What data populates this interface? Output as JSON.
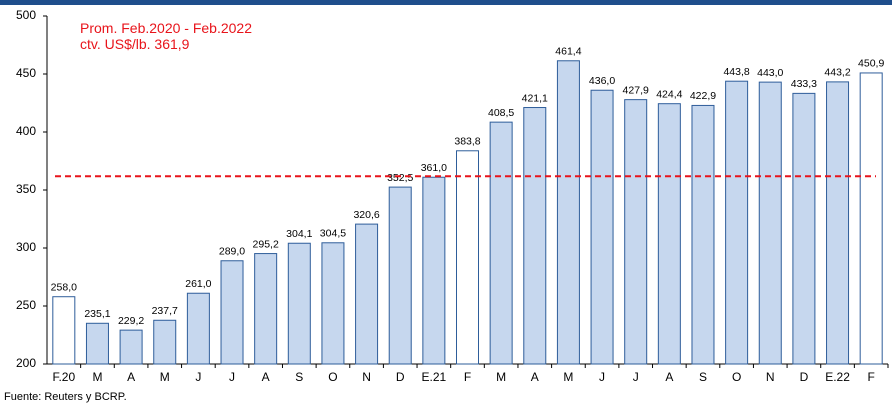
{
  "chart_data": {
    "type": "bar",
    "annotations": [
      "Prom. Feb.2020 - Feb.2022",
      "ctv. US$/lb. 361,9"
    ],
    "reference_line": {
      "value": 361.9,
      "color": "#e8141b"
    },
    "source": "Fuente: Reuters y BCRP.",
    "categories": [
      "F.20",
      "M",
      "A",
      "M",
      "J",
      "J",
      "A",
      "S",
      "O",
      "N",
      "D",
      "E.21",
      "F",
      "M",
      "A",
      "M",
      "J",
      "J",
      "A",
      "S",
      "O",
      "N",
      "D",
      "E.22",
      "F"
    ],
    "values": [
      258.0,
      235.1,
      229.2,
      237.7,
      261.0,
      289.0,
      295.2,
      304.1,
      304.5,
      320.6,
      352.5,
      361.0,
      383.8,
      408.5,
      421.1,
      461.4,
      436.0,
      427.9,
      424.4,
      422.9,
      443.8,
      443.0,
      433.3,
      443.2,
      450.9
    ],
    "value_labels": [
      "258,0",
      "235,1",
      "229,2",
      "237,7",
      "261,0",
      "289,0",
      "295,2",
      "304,1",
      "304,5",
      "320,6",
      "352,5",
      "361,0",
      "383,8",
      "408,5",
      "421,1",
      "461,4",
      "436,0",
      "427,9",
      "424,4",
      "422,9",
      "443,8",
      "443,0",
      "433,3",
      "443,2",
      "450,9"
    ],
    "colors": [
      "#ffffff",
      "#c6d7ee",
      "#c6d7ee",
      "#c6d7ee",
      "#c6d7ee",
      "#c6d7ee",
      "#c6d7ee",
      "#c6d7ee",
      "#c6d7ee",
      "#c6d7ee",
      "#c6d7ee",
      "#c6d7ee",
      "#ffffff",
      "#c6d7ee",
      "#c6d7ee",
      "#c6d7ee",
      "#c6d7ee",
      "#c6d7ee",
      "#c6d7ee",
      "#c6d7ee",
      "#c6d7ee",
      "#c6d7ee",
      "#c6d7ee",
      "#c6d7ee",
      "#ffffff"
    ],
    "edge_color": "#2e5d9a",
    "ylim": [
      200,
      500
    ],
    "yticks": [
      200,
      250,
      300,
      350,
      400,
      450,
      500
    ]
  }
}
